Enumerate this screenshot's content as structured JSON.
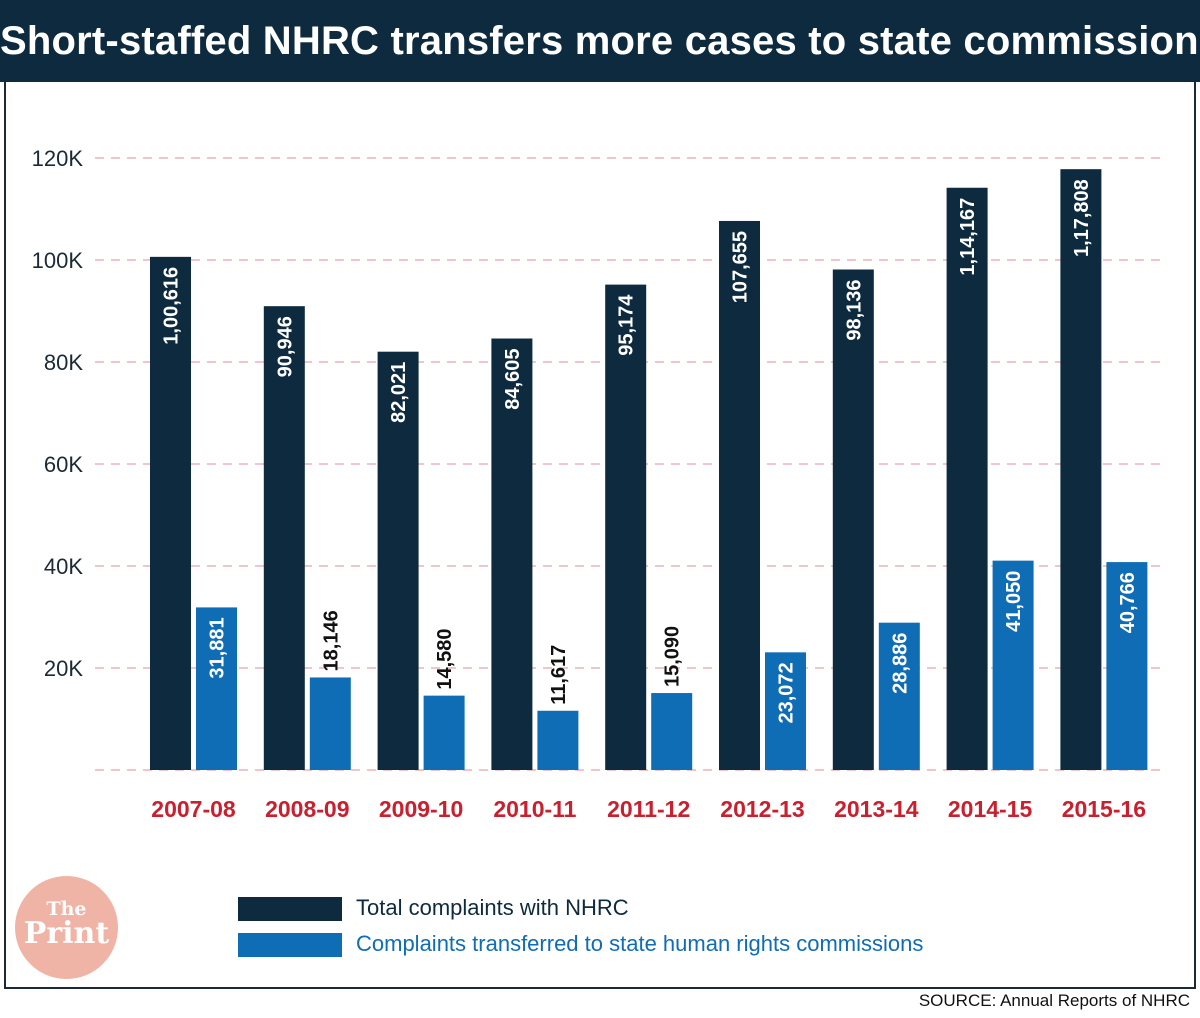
{
  "header": {
    "title": "Short-staffed NHRC transfers more cases to state commissions"
  },
  "chart_data": {
    "type": "bar",
    "title": "Short-staffed NHRC transfers more cases to state commissions",
    "xlabel": "",
    "ylabel": "",
    "ylim": [
      0,
      120000
    ],
    "y_ticks": [
      "20K",
      "40K",
      "60K",
      "80K",
      "100K",
      "120K"
    ],
    "y_tick_values": [
      20000,
      40000,
      60000,
      80000,
      100000,
      120000
    ],
    "grid": true,
    "categories": [
      "2007-08",
      "2008-09",
      "2009-10",
      "2010-11",
      "2011-12",
      "2012-13",
      "2013-14",
      "2014-15",
      "2015-16"
    ],
    "series": [
      {
        "name": "Total complaints with NHRC",
        "color": "#0d2a3e",
        "values": [
          100616,
          90946,
          82021,
          84605,
          95174,
          107655,
          98136,
          114167,
          117808
        ],
        "labels": [
          "1,00,616",
          "90,946",
          "82,021",
          "84,605",
          "95,174",
          "107,655",
          "98,136",
          "1,14,167",
          "1,17,808"
        ]
      },
      {
        "name": "Complaints transferred to state human rights commissions",
        "color": "#0f6db5",
        "values": [
          31881,
          18146,
          14580,
          11617,
          15090,
          23072,
          28886,
          41050,
          40766
        ],
        "labels": [
          "31,881",
          "18,146",
          "14,580",
          "11,617",
          "15,090",
          "23,072",
          "28,886",
          "41,050",
          "40,766"
        ]
      }
    ],
    "category_color": "#c8202e",
    "grid_color": "#e8a3aa"
  },
  "legend": {
    "items": [
      {
        "label": "Total complaints with NHRC",
        "color": "#0d2a3e",
        "text_color": "#0d2a3e"
      },
      {
        "label": "Complaints transferred to state human rights commissions",
        "color": "#0f6db5",
        "text_color": "#0f6db5"
      }
    ]
  },
  "logo": {
    "line1": "The",
    "line2": "Print"
  },
  "source": "SOURCE: Annual Reports of NHRC"
}
